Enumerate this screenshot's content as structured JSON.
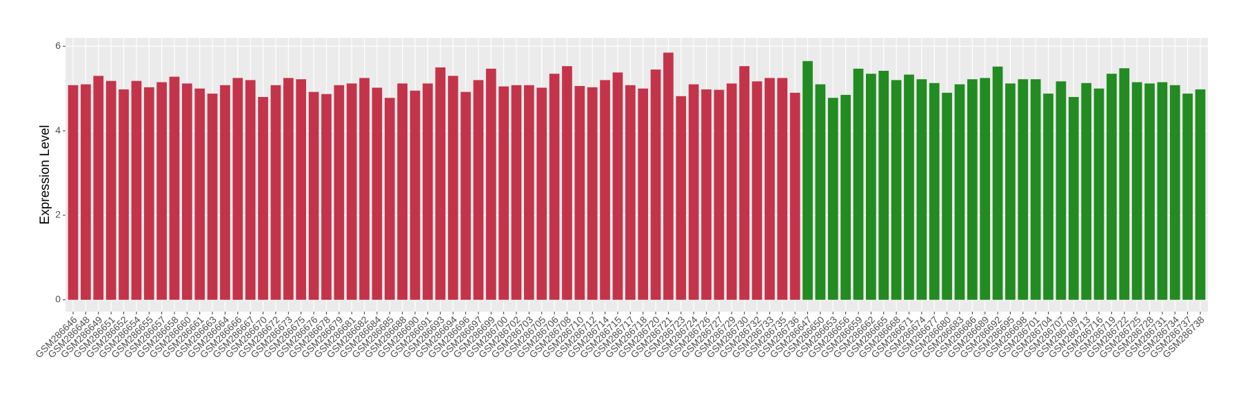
{
  "chart_data": {
    "type": "bar",
    "y_label": "Expression Level",
    "categories": [
      "GSM286646",
      "GSM286648",
      "GSM286649",
      "GSM286651",
      "GSM286652",
      "GSM286654",
      "GSM286655",
      "GSM286657",
      "GSM286658",
      "GSM286660",
      "GSM286661",
      "GSM286663",
      "GSM286664",
      "GSM286666",
      "GSM286667",
      "GSM286670",
      "GSM286672",
      "GSM286673",
      "GSM286675",
      "GSM286676",
      "GSM286678",
      "GSM286679",
      "GSM286681",
      "GSM286682",
      "GSM286684",
      "GSM286685",
      "GSM286688",
      "GSM286690",
      "GSM286691",
      "GSM286693",
      "GSM286694",
      "GSM286696",
      "GSM286697",
      "GSM286699",
      "GSM286700",
      "GSM286702",
      "GSM286703",
      "GSM286705",
      "GSM286706",
      "GSM286708",
      "GSM286710",
      "GSM286712",
      "GSM286714",
      "GSM286715",
      "GSM286717",
      "GSM286718",
      "GSM286720",
      "GSM286721",
      "GSM286723",
      "GSM286724",
      "GSM286726",
      "GSM286727",
      "GSM286729",
      "GSM286730",
      "GSM286732",
      "GSM286733",
      "GSM286735",
      "GSM286736",
      "GSM286647",
      "GSM286650",
      "GSM286653",
      "GSM286656",
      "GSM286659",
      "GSM286662",
      "GSM286665",
      "GSM286668",
      "GSM286671",
      "GSM286674",
      "GSM286677",
      "GSM286680",
      "GSM286683",
      "GSM286686",
      "GSM286689",
      "GSM286692",
      "GSM286695",
      "GSM286698",
      "GSM286701",
      "GSM286704",
      "GSM286707",
      "GSM286709",
      "GSM286713",
      "GSM286716",
      "GSM286719",
      "GSM286722",
      "GSM286725",
      "GSM286728",
      "GSM286731",
      "GSM286734",
      "GSM286737",
      "GSM286738"
    ],
    "values": [
      5.08,
      5.1,
      5.3,
      5.18,
      4.98,
      5.18,
      5.03,
      5.15,
      5.28,
      5.12,
      5.0,
      4.88,
      5.08,
      5.25,
      5.2,
      4.8,
      5.08,
      5.25,
      5.22,
      4.92,
      4.87,
      5.08,
      5.12,
      5.25,
      5.02,
      4.78,
      5.12,
      4.95,
      5.12,
      5.5,
      5.3,
      4.92,
      5.2,
      5.47,
      5.05,
      5.08,
      5.08,
      5.02,
      5.35,
      5.53,
      5.06,
      5.03,
      5.2,
      5.38,
      5.08,
      5.0,
      5.45,
      5.85,
      4.82,
      5.1,
      4.98,
      4.97,
      5.12,
      5.53,
      5.17,
      5.25,
      5.25,
      4.9,
      5.65,
      5.1,
      4.78,
      4.85,
      5.47,
      5.35,
      5.42,
      5.2,
      5.33,
      5.22,
      5.13,
      4.9,
      5.1,
      5.22,
      5.25,
      5.52,
      5.12,
      5.22,
      5.22,
      4.88,
      5.17,
      4.8,
      5.13,
      5.0,
      5.35,
      5.48,
      5.15,
      5.12,
      5.15,
      5.08,
      4.88,
      4.98
    ],
    "colors": [
      "#c3344a",
      "#c3344a",
      "#c3344a",
      "#c3344a",
      "#c3344a",
      "#c3344a",
      "#c3344a",
      "#c3344a",
      "#c3344a",
      "#c3344a",
      "#c3344a",
      "#c3344a",
      "#c3344a",
      "#c3344a",
      "#c3344a",
      "#c3344a",
      "#c3344a",
      "#c3344a",
      "#c3344a",
      "#c3344a",
      "#c3344a",
      "#c3344a",
      "#c3344a",
      "#c3344a",
      "#c3344a",
      "#c3344a",
      "#c3344a",
      "#c3344a",
      "#c3344a",
      "#c3344a",
      "#c3344a",
      "#c3344a",
      "#c3344a",
      "#c3344a",
      "#c3344a",
      "#c3344a",
      "#c3344a",
      "#c3344a",
      "#c3344a",
      "#c3344a",
      "#c3344a",
      "#c3344a",
      "#c3344a",
      "#c3344a",
      "#c3344a",
      "#c3344a",
      "#c3344a",
      "#c3344a",
      "#c3344a",
      "#c3344a",
      "#c3344a",
      "#c3344a",
      "#c3344a",
      "#c3344a",
      "#c3344a",
      "#c3344a",
      "#c3344a",
      "#c3344a",
      "#228b22",
      "#228b22",
      "#228b22",
      "#228b22",
      "#228b22",
      "#228b22",
      "#228b22",
      "#228b22",
      "#228b22",
      "#228b22",
      "#228b22",
      "#228b22",
      "#228b22",
      "#228b22",
      "#228b22",
      "#228b22",
      "#228b22",
      "#228b22",
      "#228b22",
      "#228b22",
      "#228b22",
      "#228b22",
      "#228b22",
      "#228b22",
      "#228b22",
      "#228b22",
      "#228b22",
      "#228b22",
      "#228b22",
      "#228b22",
      "#228b22",
      "#228b22"
    ],
    "ylim": [
      -0.28,
      6.2
    ],
    "yticks": [
      0,
      2,
      4,
      6
    ],
    "grid": true
  }
}
